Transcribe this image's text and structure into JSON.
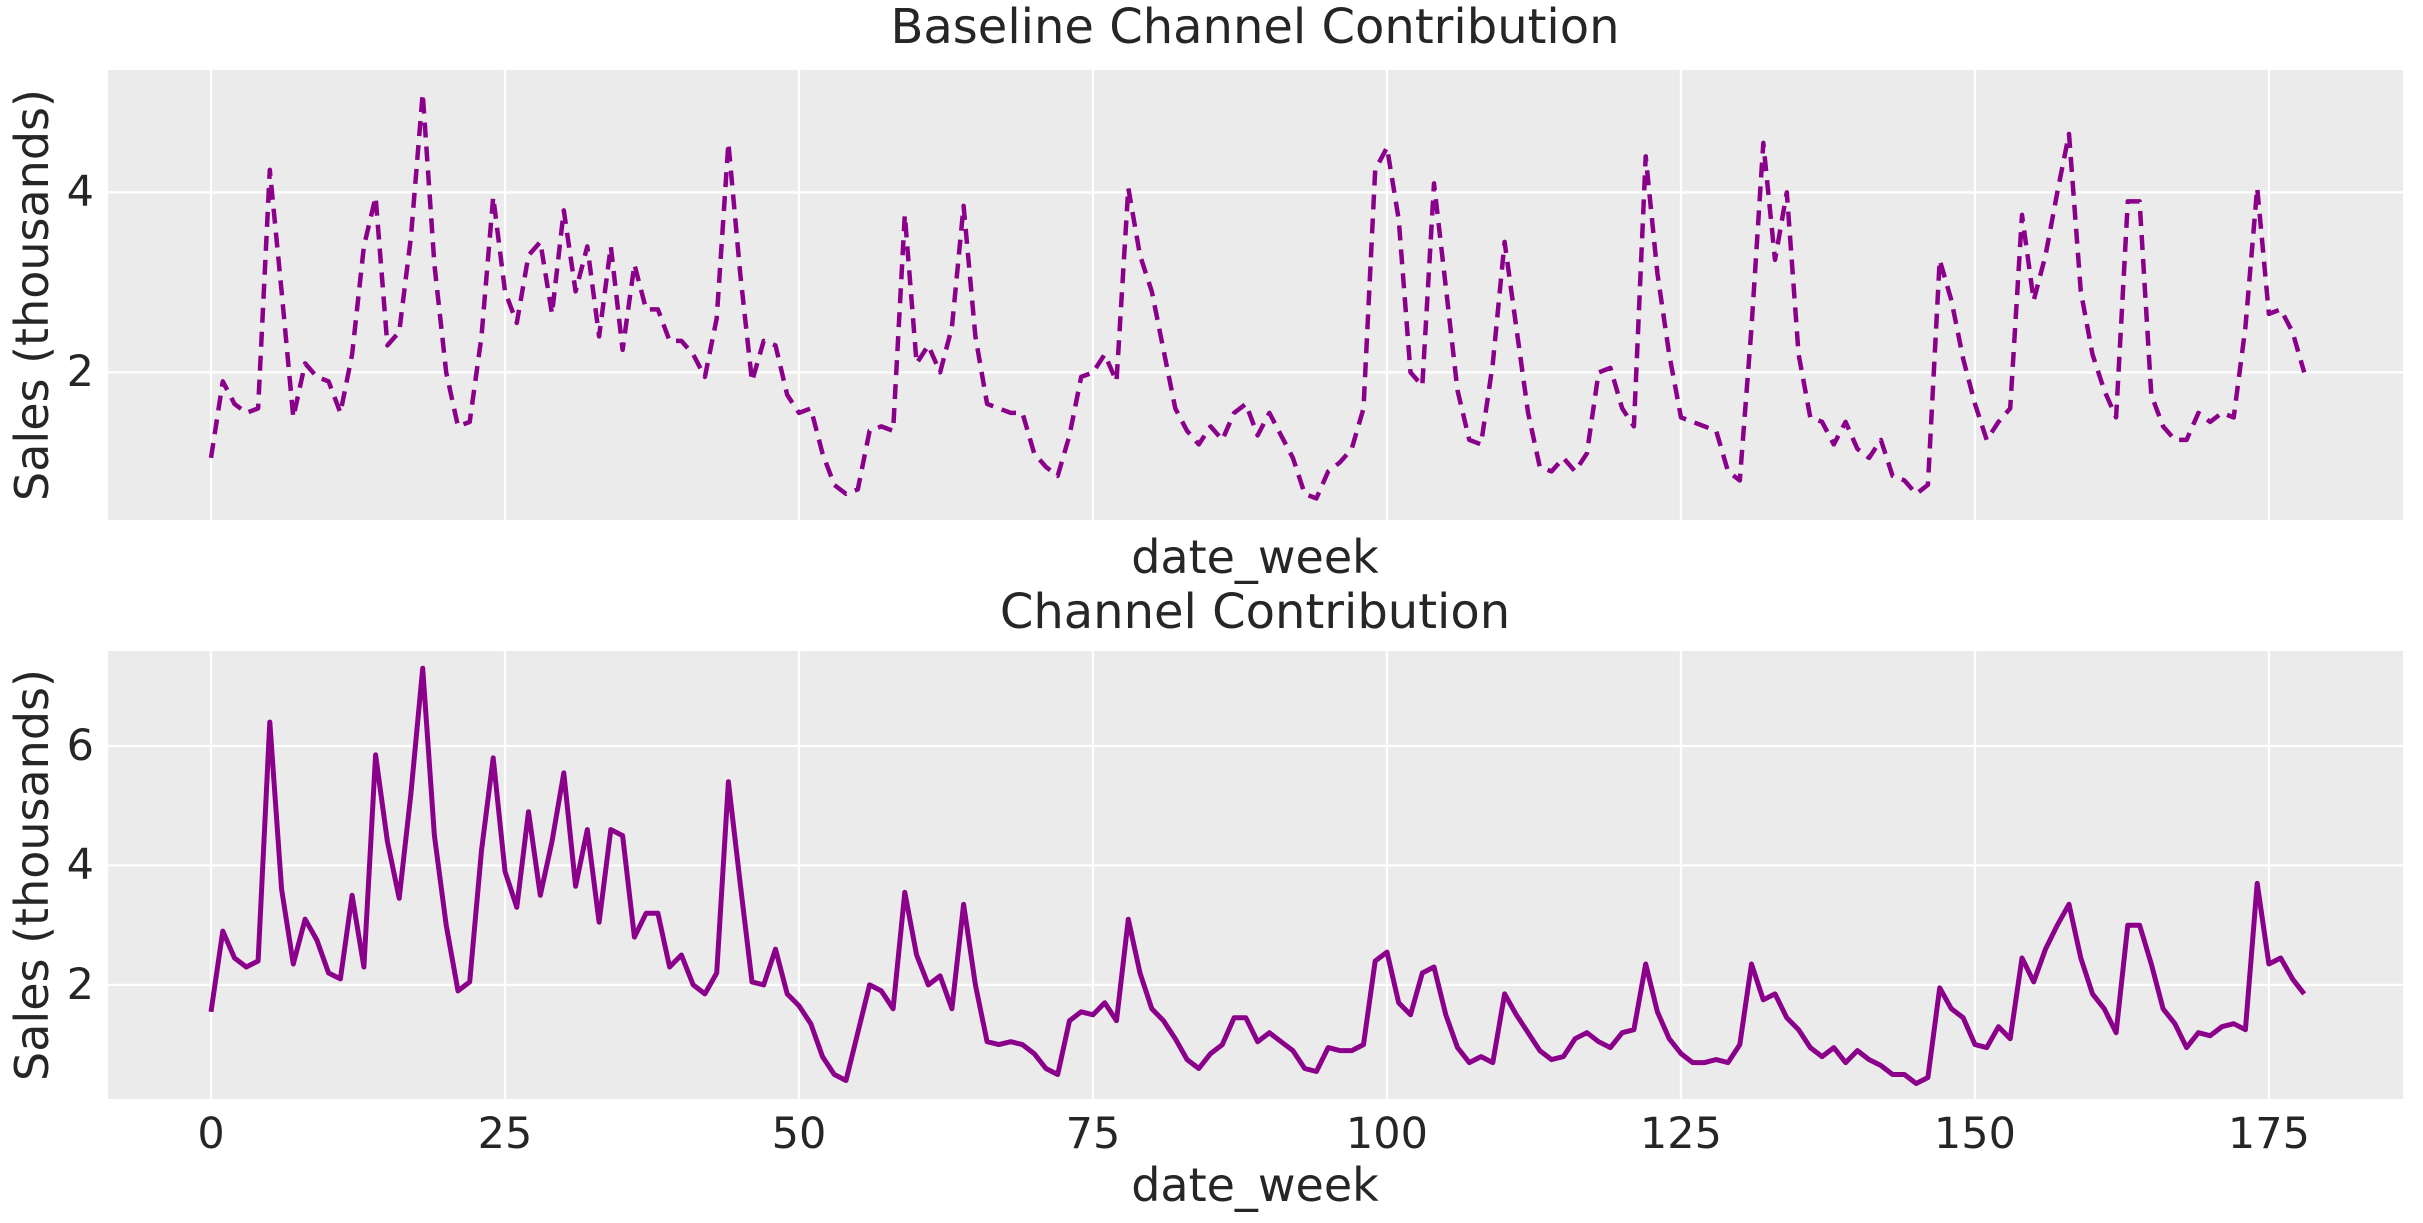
{
  "figure": {
    "background_color": "#ffffff",
    "plot_background_color": "#ebebeb",
    "grid_color": "#ffffff",
    "text_color": "#262626",
    "series_color": "#8b008b"
  },
  "chart_data": [
    {
      "type": "line",
      "title": "Baseline Channel Contribution",
      "xlabel": "date_week",
      "ylabel": "Sales (thousands)",
      "legend": null,
      "grid": true,
      "line_style": "dashed",
      "line_color": "#8b008b",
      "x_start": 0,
      "x_step": 1,
      "xticks": [
        0,
        25,
        50,
        75,
        100,
        125,
        150,
        175
      ],
      "xtick_labels_visible": false,
      "yticks": [
        2,
        4
      ],
      "xlim": [
        -8.76,
        186.4
      ],
      "ylim": [
        0.36,
        5.36
      ],
      "values": [
        1.05,
        1.9,
        1.65,
        1.55,
        1.6,
        4.25,
        2.9,
        1.5,
        2.1,
        1.95,
        1.9,
        1.55,
        2.2,
        3.4,
        3.95,
        2.3,
        2.45,
        3.5,
        5.1,
        3.2,
        2.0,
        1.4,
        1.45,
        2.4,
        3.95,
        2.9,
        2.55,
        3.3,
        3.45,
        2.65,
        3.8,
        2.9,
        3.4,
        2.4,
        3.4,
        2.25,
        3.2,
        2.7,
        2.7,
        2.35,
        2.35,
        2.2,
        1.95,
        2.6,
        4.55,
        3.1,
        1.9,
        2.35,
        2.3,
        1.75,
        1.55,
        1.6,
        1.1,
        0.75,
        0.65,
        0.7,
        1.35,
        1.4,
        1.35,
        3.75,
        2.1,
        2.3,
        2.0,
        2.5,
        3.85,
        2.4,
        1.65,
        1.6,
        1.55,
        1.55,
        1.1,
        0.95,
        0.85,
        1.3,
        1.95,
        2.0,
        2.2,
        1.9,
        4.05,
        3.3,
        2.9,
        2.25,
        1.6,
        1.35,
        1.2,
        1.4,
        1.25,
        1.55,
        1.65,
        1.3,
        1.55,
        1.3,
        1.05,
        0.65,
        0.6,
        0.9,
        1.0,
        1.15,
        1.6,
        4.25,
        4.5,
        3.7,
        2.0,
        1.85,
        4.1,
        2.95,
        1.8,
        1.25,
        1.2,
        2.1,
        3.45,
        2.5,
        1.55,
        0.95,
        0.9,
        1.05,
        0.9,
        1.1,
        2.0,
        2.05,
        1.6,
        1.4,
        4.4,
        3.1,
        2.2,
        1.5,
        1.45,
        1.4,
        1.35,
        0.9,
        0.8,
        2.5,
        4.55,
        3.25,
        4.0,
        2.2,
        1.5,
        1.45,
        1.2,
        1.45,
        1.15,
        1.05,
        1.25,
        0.85,
        0.8,
        0.65,
        0.75,
        3.25,
        2.8,
        2.15,
        1.65,
        1.25,
        1.45,
        1.6,
        3.75,
        2.8,
        3.3,
        4.0,
        4.65,
        2.9,
        2.2,
        1.8,
        1.5,
        3.9,
        3.9,
        1.75,
        1.4,
        1.25,
        1.25,
        1.55,
        1.45,
        1.55,
        1.5,
        2.5,
        4.05,
        2.65,
        2.7,
        2.45,
        2.0
      ]
    },
    {
      "type": "line",
      "title": "Channel Contribution",
      "xlabel": "date_week",
      "ylabel": "Sales (thousands)",
      "legend": null,
      "grid": true,
      "line_style": "solid",
      "line_color": "#8b008b",
      "x_start": 0,
      "x_step": 1,
      "xticks": [
        0,
        25,
        50,
        75,
        100,
        125,
        150,
        175
      ],
      "xtick_labels_visible": true,
      "yticks": [
        2,
        4,
        6
      ],
      "xlim": [
        -8.76,
        186.4
      ],
      "ylim": [
        0.09,
        7.59
      ],
      "values": [
        1.55,
        2.9,
        2.45,
        2.3,
        2.4,
        6.4,
        3.6,
        2.35,
        3.1,
        2.75,
        2.2,
        2.1,
        3.5,
        2.3,
        5.85,
        4.4,
        3.45,
        5.2,
        7.3,
        4.5,
        3.0,
        1.9,
        2.05,
        4.25,
        5.8,
        3.9,
        3.3,
        4.9,
        3.5,
        4.4,
        5.55,
        3.65,
        4.6,
        3.05,
        4.6,
        4.5,
        2.8,
        3.2,
        3.2,
        2.3,
        2.5,
        2.0,
        1.85,
        2.2,
        5.4,
        3.7,
        2.05,
        2.0,
        2.6,
        1.85,
        1.65,
        1.35,
        0.8,
        0.5,
        0.4,
        1.2,
        2.0,
        1.9,
        1.6,
        3.55,
        2.5,
        2.0,
        2.15,
        1.6,
        3.35,
        2.0,
        1.05,
        1.0,
        1.05,
        1.0,
        0.85,
        0.6,
        0.5,
        1.4,
        1.55,
        1.5,
        1.7,
        1.4,
        3.1,
        2.2,
        1.6,
        1.4,
        1.1,
        0.75,
        0.6,
        0.85,
        1.0,
        1.45,
        1.45,
        1.05,
        1.2,
        1.05,
        0.9,
        0.6,
        0.55,
        0.95,
        0.9,
        0.9,
        1.0,
        2.4,
        2.55,
        1.7,
        1.5,
        2.2,
        2.3,
        1.5,
        0.95,
        0.7,
        0.8,
        0.7,
        1.85,
        1.5,
        1.2,
        0.9,
        0.75,
        0.8,
        1.1,
        1.2,
        1.05,
        0.95,
        1.2,
        1.25,
        2.35,
        1.55,
        1.1,
        0.85,
        0.7,
        0.7,
        0.75,
        0.7,
        1.0,
        2.35,
        1.75,
        1.85,
        1.45,
        1.25,
        0.95,
        0.8,
        0.95,
        0.7,
        0.9,
        0.75,
        0.65,
        0.5,
        0.5,
        0.35,
        0.45,
        1.95,
        1.6,
        1.45,
        1.0,
        0.95,
        1.3,
        1.1,
        2.45,
        2.05,
        2.6,
        3.0,
        3.35,
        2.45,
        1.85,
        1.6,
        1.2,
        3.0,
        3.0,
        2.35,
        1.6,
        1.35,
        0.95,
        1.2,
        1.15,
        1.3,
        1.35,
        1.25,
        3.7,
        2.35,
        2.45,
        2.1,
        1.85
      ]
    }
  ]
}
